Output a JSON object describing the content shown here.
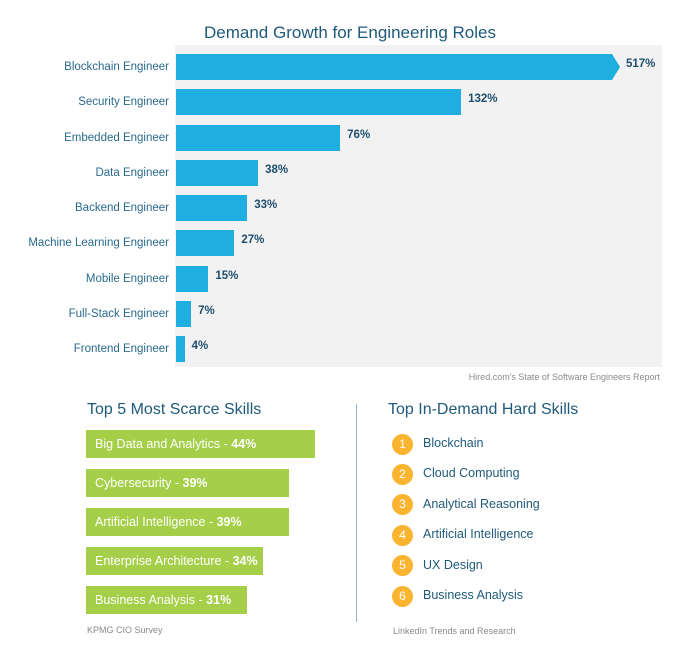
{
  "chart_data": {
    "type": "bar",
    "orientation": "horizontal",
    "title": "Demand Growth for Engineering Roles",
    "categories": [
      "Blockchain Engineer",
      "Security Engineer",
      "Embedded Engineer",
      "Data Engineer",
      "Backend Engineer",
      "Machine Learning Engineer",
      "Mobile Engineer",
      "Full-Stack Engineer",
      "Frontend Engineer"
    ],
    "values": [
      517,
      132,
      76,
      38,
      33,
      27,
      15,
      7,
      4
    ],
    "value_labels": [
      "517%",
      "132%",
      "76%",
      "38%",
      "33%",
      "27%",
      "15%",
      "7%",
      "4%"
    ],
    "truncated": [
      "Blockchain Engineer"
    ],
    "xlabel": "",
    "ylabel": "",
    "grid": false,
    "color": "#1eaee0",
    "source": "Hired.com's State of Software Engineers Report"
  },
  "scarce": {
    "title": "Top 5 Most Scarce Skills",
    "items": [
      {
        "label": "Big Data and Analytics - ",
        "value": "44%",
        "pct": 44
      },
      {
        "label": "Cybersecurity - ",
        "value": "39%",
        "pct": 39
      },
      {
        "label": "Artificial Intelligence - ",
        "value": "39%",
        "pct": 39
      },
      {
        "label": "Enterprise Architecture - ",
        "value": "34%",
        "pct": 34
      },
      {
        "label": "Business Analysis - ",
        "value": "31%",
        "pct": 31
      }
    ],
    "source": "KPMG CIO Survey",
    "color": "#a5cf48"
  },
  "hard": {
    "title": "Top In-Demand Hard Skills",
    "items": [
      {
        "rank": "1",
        "label": "Blockchain"
      },
      {
        "rank": "2",
        "label": "Cloud Computing"
      },
      {
        "rank": "3",
        "label": "Analytical Reasoning"
      },
      {
        "rank": "4",
        "label": "Artificial Intelligence"
      },
      {
        "rank": "5",
        "label": "UX Design"
      },
      {
        "rank": "6",
        "label": "Business Analysis"
      }
    ],
    "source": "LinkedIn Trends and Research",
    "color": "#fbb430"
  }
}
